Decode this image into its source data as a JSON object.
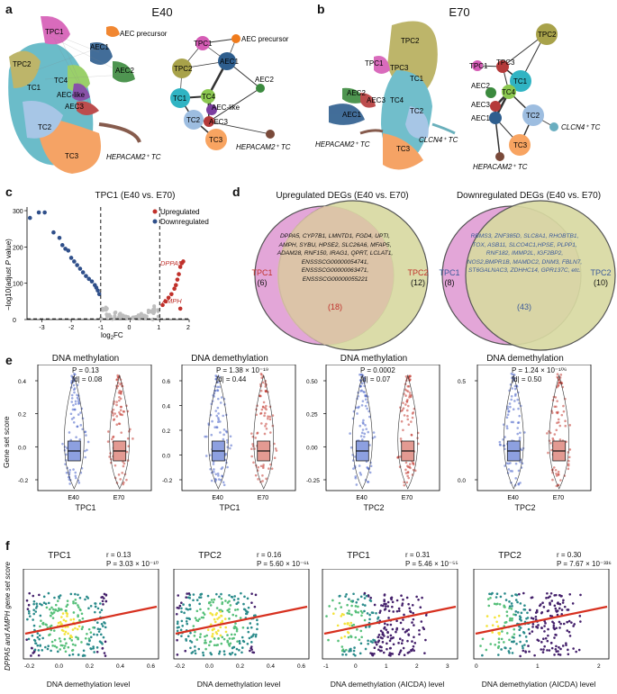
{
  "panels": {
    "a": {
      "letter": "a",
      "title": "E40",
      "umap_labels": [
        "TPC1",
        "AEC precursor",
        "TPC2",
        "AEC1",
        "TC1",
        "TC4",
        "AEC2",
        "AEC-like",
        "AEC3",
        "TC2",
        "TC3",
        "HEPACAM2⁺ TC"
      ],
      "graph_nodes": [
        {
          "name": "TPC1",
          "color": "#d55cb5"
        },
        {
          "name": "AEC precursor",
          "color": "#f07b1c"
        },
        {
          "name": "TPC2",
          "color": "#a8a24a"
        },
        {
          "name": "AEC1",
          "color": "#2e5e8e"
        },
        {
          "name": "TC1",
          "color": "#30b4c3"
        },
        {
          "name": "TC4",
          "color": "#8bc850"
        },
        {
          "name": "AEC2",
          "color": "#3b8a3e"
        },
        {
          "name": "AEC-like",
          "color": "#7c3fa0"
        },
        {
          "name": "AEC3",
          "color": "#b53a3a"
        },
        {
          "name": "TC2",
          "color": "#9dbde0"
        },
        {
          "name": "TC3",
          "color": "#f8a461"
        },
        {
          "name": "HEPACAM2⁺ TC",
          "color": "#7a4a3a"
        }
      ]
    },
    "b": {
      "letter": "b",
      "title": "E70",
      "umap_labels": [
        "TPC2",
        "TPC1",
        "TPC3",
        "TC1",
        "AEC2",
        "AEC3",
        "TC4",
        "AEC1",
        "TC2",
        "CLCN4⁺ TC",
        "HEPACAM2⁺ TC",
        "TC3"
      ],
      "graph_labels": [
        "TPC2",
        "TPC1",
        "TPC3",
        "TC1",
        "AEC2",
        "TC4",
        "AEC3",
        "AEC1",
        "TC2",
        "CLCN4⁺ TC",
        "TC3",
        "HEPACAM2⁺ TC"
      ]
    },
    "c": {
      "letter": "c",
      "title": "TPC1 (E40 vs. E70)",
      "legend": [
        "Upregulated",
        "Downregulated"
      ],
      "gene_labels": [
        "DPPA5",
        "AMPH"
      ]
    },
    "d": {
      "letter": "d",
      "up": {
        "title": "Upregulated DEGs (E40 vs. E70)",
        "left_label": "TPC1",
        "left_count": "(6)",
        "right_label": "TPC2",
        "right_count": "(12)",
        "shared_count": "(18)",
        "genes": "DPPA5, CYP7B1, LMNTD1, FGD4, UPTI, AMPH, SYBU, HPSE2, SLC26A6, MFAP5, ADAM28, RNF150, IRAG1, QPRT, LCLAT1, ENSSSCG00000054741, ENSSSCG00000063471, ENSSSCG00000055221"
      },
      "down": {
        "title": "Downregulated DEGs (E40 vs. E70)",
        "left_label": "TPC1",
        "left_count": "(8)",
        "right_label": "TPC2",
        "right_count": "(10)",
        "shared_count": "(43)",
        "genes": "RBMS3, ZNF385D, SLC8A1, RHOBTB1, TOX, ASB11, SLCO4C1,HPSE, PLPP1, RNF182, IMMP2L, IGF2BP2, NOS2,BMPR1B, MAMDC2, DNM3, FBLN7, ST6GALNAC3, ZDHHC14, GPR137C, etc."
      }
    },
    "e": {
      "letter": "e",
      "ylabel": "Gene set score",
      "plots": [
        {
          "title": "DNA methylation",
          "p": "P = 0.13",
          "d": "|d| = 0.08",
          "xlabel": "TPC1",
          "groups": [
            "E40",
            "E70"
          ],
          "yticks": [
            "0.4",
            "0.2",
            "0.0",
            "-0.2"
          ]
        },
        {
          "title": "DNA demethylation",
          "p": "P = 1.38 × 10⁻¹⁹",
          "d": "|d| = 0.44",
          "xlabel": "TPC1",
          "groups": [
            "E40",
            "E70"
          ],
          "yticks": [
            "0.6",
            "0.4",
            "0.2",
            "0.0",
            "-0.2"
          ]
        },
        {
          "title": "DNA methylation",
          "p": "P = 0.0002",
          "d": "|d| = 0.07",
          "xlabel": "TPC2",
          "groups": [
            "E40",
            "E70"
          ],
          "yticks": [
            "0.50",
            "0.25",
            "0.00",
            "-0.25"
          ]
        },
        {
          "title": "DNA demethylation",
          "p": "P = 1.24 × 10⁻¹⁰⁶",
          "d": "|d| = 0.50",
          "xlabel": "TPC2",
          "groups": [
            "E40",
            "E70"
          ],
          "yticks": [
            "0.5",
            "0.0"
          ]
        }
      ]
    },
    "f": {
      "letter": "f",
      "ylabel": "DPPA5 and AMPH gene set score",
      "plots": [
        {
          "title": "TPC1",
          "r": "r = 0.13",
          "p": "P = 3.03 × 10⁻¹⁰",
          "xlabel": "DNA demethylation level",
          "xticks": [
            "-0.2",
            "0.0",
            "0.2",
            "0.4",
            "0.6"
          ]
        },
        {
          "title": "TPC2",
          "r": "r = 0.16",
          "p": "P = 5.60 × 10⁻⁶¹",
          "xlabel": "DNA demethylation level",
          "xticks": [
            "-0.2",
            "0.0",
            "0.2",
            "0.4",
            "0.6"
          ]
        },
        {
          "title": "TPC1",
          "r": "r = 0.31",
          "p": "P = 5.46 × 10⁻⁵⁵",
          "xlabel": "DNA demethylation (AICDA) level",
          "xticks": [
            "-1",
            "0",
            "1",
            "2",
            "3"
          ]
        },
        {
          "title": "TPC2",
          "r": "r = 0.30",
          "p": "P = 7.67 × 10⁻³³⁶",
          "xlabel": "DNA demethylation (AICDA) level",
          "xticks": [
            "0",
            "1",
            "2"
          ]
        }
      ]
    }
  },
  "chart_data": [
    {
      "type": "scatter",
      "title": "TPC1 (E40 vs. E70)",
      "xlabel": "log2FC",
      "ylabel": "-log10(adjust P value)",
      "xlim": [
        -3.5,
        2
      ],
      "ylim": [
        0,
        310
      ],
      "xticks": [
        -3,
        -2,
        -1,
        0,
        1,
        2
      ],
      "yticks": [
        0,
        100,
        200,
        300
      ],
      "thresholds": {
        "x": [
          -1,
          1
        ],
        "y": 2
      },
      "series": [
        {
          "name": "Downregulated",
          "color": "#2f4f8a",
          "points": [
            [
              -3.4,
              280
            ],
            [
              -3.1,
              295
            ],
            [
              -2.9,
              295
            ],
            [
              -2.6,
              240
            ],
            [
              -2.4,
              225
            ],
            [
              -2.3,
              205
            ],
            [
              -2.2,
              195
            ],
            [
              -2.1,
              190
            ],
            [
              -2.0,
              170
            ],
            [
              -1.9,
              160
            ],
            [
              -1.8,
              150
            ],
            [
              -1.7,
              140
            ],
            [
              -1.6,
              130
            ],
            [
              -1.5,
              120
            ],
            [
              -1.4,
              112
            ],
            [
              -1.3,
              105
            ],
            [
              -1.2,
              95
            ],
            [
              -1.15,
              88
            ],
            [
              -1.1,
              80
            ],
            [
              -1.05,
              70
            ]
          ]
        },
        {
          "name": "Upregulated",
          "color": "#c0312b",
          "points": [
            [
              1.1,
              40
            ],
            [
              1.2,
              50
            ],
            [
              1.3,
              60
            ],
            [
              1.4,
              70
            ],
            [
              1.5,
              85
            ],
            [
              1.55,
              95
            ],
            [
              1.6,
              110
            ],
            [
              1.65,
              125
            ],
            [
              1.7,
              145
            ],
            [
              1.75,
              155
            ],
            [
              1.8,
              160
            ],
            [
              1.7,
              30
            ]
          ]
        }
      ]
    }
  ]
}
